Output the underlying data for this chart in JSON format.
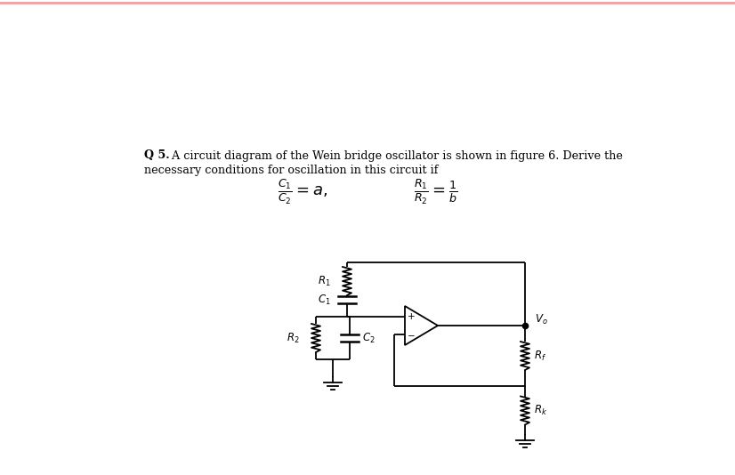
{
  "bg_color": "#ffffff",
  "text_color": "#000000",
  "line_color": "#000000",
  "fig_width": 8.26,
  "fig_height": 5.34,
  "dpi": 100,
  "text_bold": "Q 5.",
  "text_rest": " A circuit diagram of the Wein bridge oscillator is shown in figure 6. Derive the",
  "text_line2": "necessary conditions for oscillation in this circuit if",
  "top_border_color": "#f0a0a0"
}
